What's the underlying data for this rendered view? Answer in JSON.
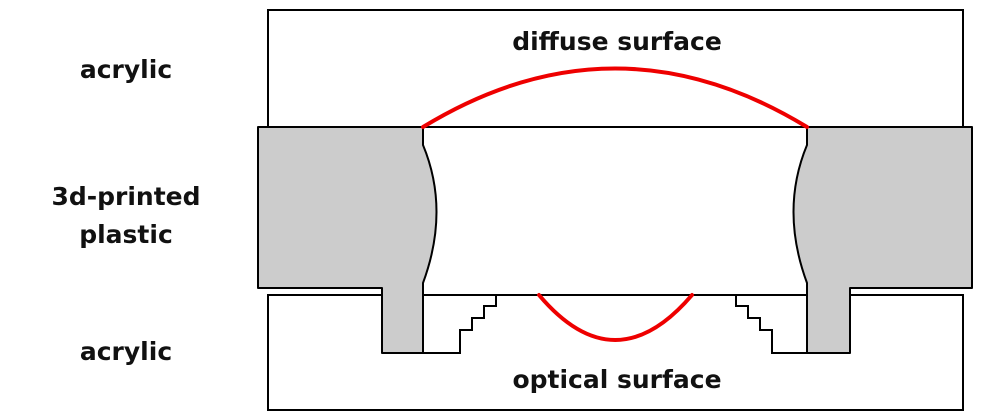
{
  "labels": {
    "top_material": "acrylic",
    "middle_material_line1": "3d-printed",
    "middle_material_line2": "plastic",
    "bottom_material": "acrylic",
    "top_surface": "diffuse surface",
    "bottom_surface": "optical surface"
  },
  "colors": {
    "plastic_fill": "#cccccc",
    "outline": "#000000",
    "highlight_curve": "#ee0000",
    "text": "#111111"
  }
}
